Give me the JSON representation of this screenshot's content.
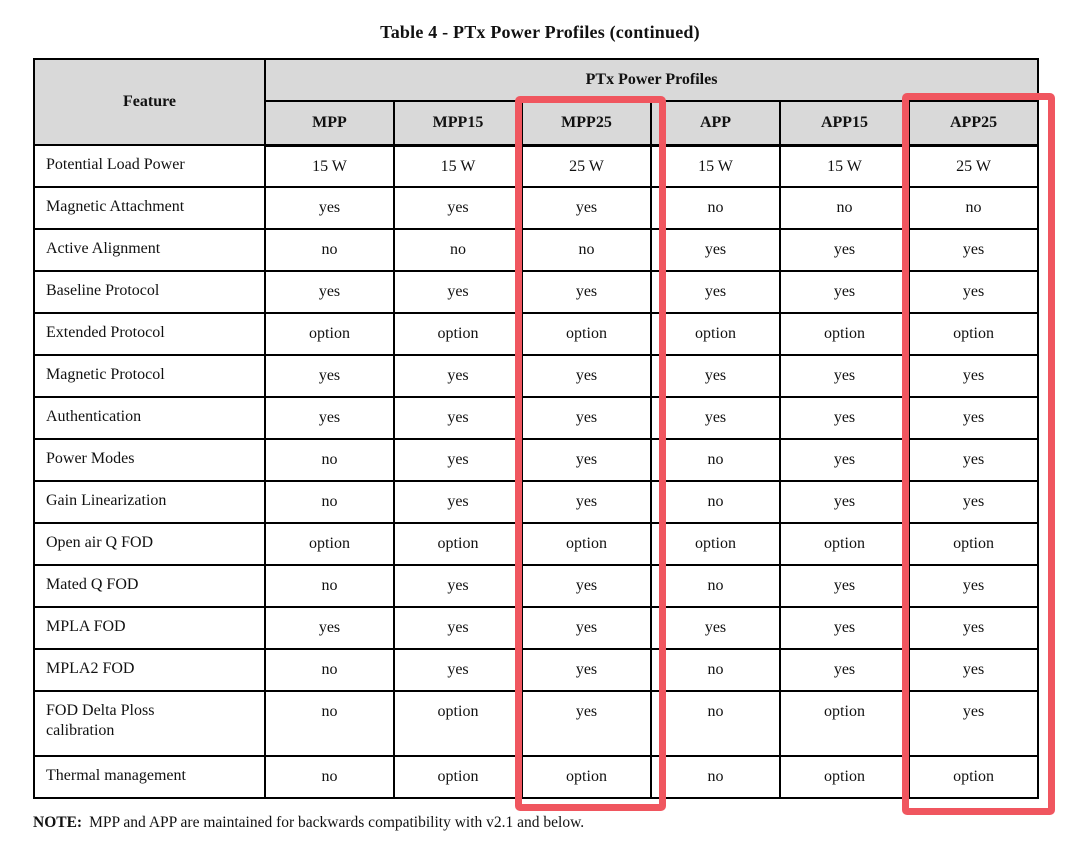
{
  "title": "Table 4 - PTx Power Profiles (continued)",
  "table": {
    "feature_header": "Feature",
    "group_header": "PTx Power Profiles",
    "columns": [
      "MPP",
      "MPP15",
      "MPP25",
      "APP",
      "APP15",
      "APP25"
    ],
    "highlighted_columns": [
      "MPP25",
      "APP25"
    ],
    "rows": [
      {
        "feature": "Potential Load Power",
        "values": [
          "15 W",
          "15 W",
          "25 W",
          "15 W",
          "15 W",
          "25 W"
        ]
      },
      {
        "feature": "Magnetic Attachment",
        "values": [
          "yes",
          "yes",
          "yes",
          "no",
          "no",
          "no"
        ]
      },
      {
        "feature": "Active Alignment",
        "values": [
          "no",
          "no",
          "no",
          "yes",
          "yes",
          "yes"
        ]
      },
      {
        "feature": "Baseline Protocol",
        "values": [
          "yes",
          "yes",
          "yes",
          "yes",
          "yes",
          "yes"
        ]
      },
      {
        "feature": "Extended Protocol",
        "values": [
          "option",
          "option",
          "option",
          "option",
          "option",
          "option"
        ]
      },
      {
        "feature": "Magnetic Protocol",
        "values": [
          "yes",
          "yes",
          "yes",
          "yes",
          "yes",
          "yes"
        ]
      },
      {
        "feature": "Authentication",
        "values": [
          "yes",
          "yes",
          "yes",
          "yes",
          "yes",
          "yes"
        ]
      },
      {
        "feature": "Power Modes",
        "values": [
          "no",
          "yes",
          "yes",
          "no",
          "yes",
          "yes"
        ]
      },
      {
        "feature": "Gain Linearization",
        "values": [
          "no",
          "yes",
          "yes",
          "no",
          "yes",
          "yes"
        ]
      },
      {
        "feature": "Open air Q FOD",
        "values": [
          "option",
          "option",
          "option",
          "option",
          "option",
          "option"
        ]
      },
      {
        "feature": "Mated Q FOD",
        "values": [
          "no",
          "yes",
          "yes",
          "no",
          "yes",
          "yes"
        ]
      },
      {
        "feature": "MPLA FOD",
        "values": [
          "yes",
          "yes",
          "yes",
          "yes",
          "yes",
          "yes"
        ]
      },
      {
        "feature": "MPLA2 FOD",
        "values": [
          "no",
          "yes",
          "yes",
          "no",
          "yes",
          "yes"
        ]
      },
      {
        "feature": "FOD Delta Ploss calibration",
        "values": [
          "no",
          "option",
          "yes",
          "no",
          "option",
          "yes"
        ]
      },
      {
        "feature": "Thermal management",
        "values": [
          "no",
          "option",
          "option",
          "no",
          "option",
          "option"
        ]
      }
    ]
  },
  "note": {
    "label": "NOTE:",
    "text": "MPP and APP are maintained for backwards compatibility with v2.1 and below."
  },
  "colors": {
    "highlight_red": "#f0565f",
    "header_gray": "#d9d9d9",
    "border_black": "#000000"
  }
}
